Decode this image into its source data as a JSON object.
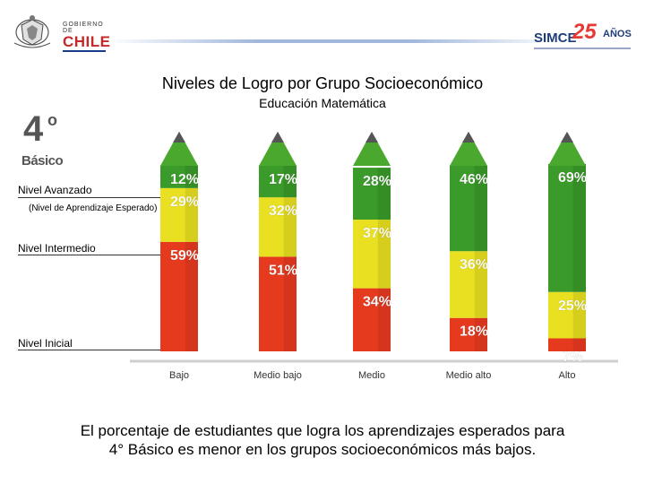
{
  "header": {
    "chile_small": "GOBIERNO DE",
    "chile_big": "CHILE",
    "simce": "SIMCE",
    "simce_number": "25",
    "simce_suffix": "AÑOS"
  },
  "grade": {
    "number": "4",
    "superscript": "o",
    "label": "Básico"
  },
  "levels": {
    "avanzado": "Nivel Avanzado",
    "avanzado_note": "(Nivel de Aprendizaje Esperado)",
    "intermedio": "Nivel Intermedio",
    "inicial": "Nivel Inicial"
  },
  "chart_data": {
    "type": "bar",
    "stacked": true,
    "style": "pencils",
    "title": "Niveles de Logro por Grupo Socioeconómico",
    "subtitle": "Educación Matemática",
    "categories": [
      "Bajo",
      "Medio bajo",
      "Medio",
      "Medio alto",
      "Alto"
    ],
    "series": [
      {
        "name": "Nivel Inicial",
        "color": "#e63a1f",
        "values": [
          59,
          51,
          34,
          18,
          7
        ]
      },
      {
        "name": "Nivel Intermedio",
        "color": "#e8e020",
        "values": [
          29,
          32,
          37,
          36,
          25
        ]
      },
      {
        "name": "Nivel Avanzado",
        "color": "#3a9a2a",
        "values": [
          12,
          17,
          28,
          46,
          69
        ]
      }
    ],
    "value_suffix": "%",
    "ylim": [
      0,
      100
    ]
  },
  "footer": {
    "line1": "El porcentaje de estudiantes que logra los aprendizajes esperados para",
    "line2": "4° Básico es menor en los grupos socioeconómicos más bajos."
  }
}
